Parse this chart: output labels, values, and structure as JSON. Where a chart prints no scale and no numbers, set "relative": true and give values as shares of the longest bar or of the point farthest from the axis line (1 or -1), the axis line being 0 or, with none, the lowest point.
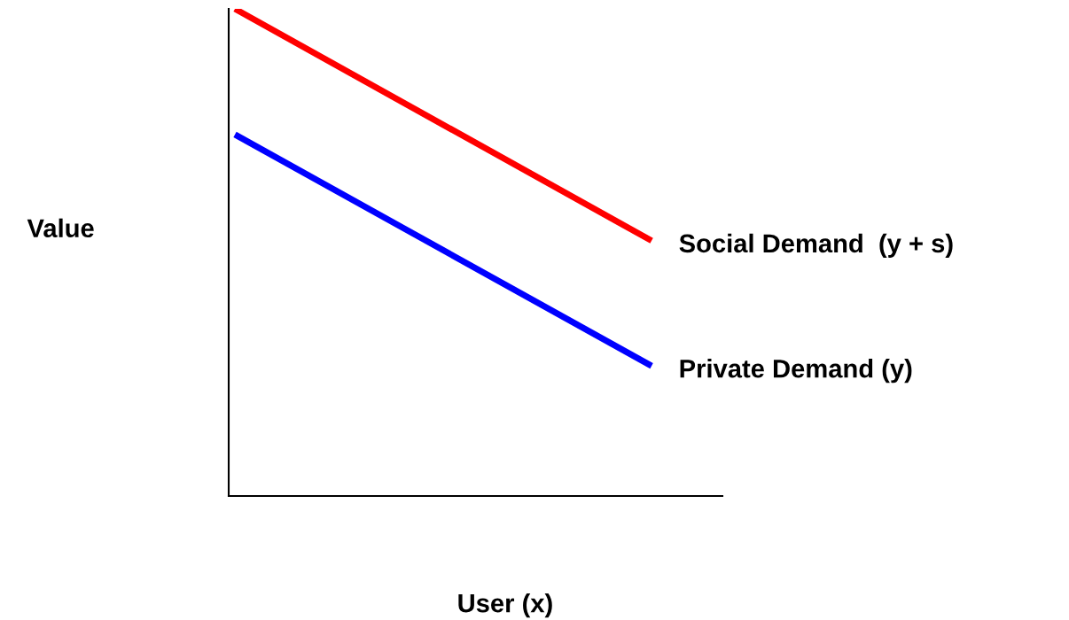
{
  "chart_data": {
    "type": "line",
    "relative": true,
    "xlabel": "User (x)",
    "ylabel": "Value",
    "categories": [
      null,
      null
    ],
    "series": [
      {
        "name": "Social Demand  (y + s)",
        "color": "#ff0000",
        "values": [
          1,
          0.524
        ]
      },
      {
        "name": "Private Demand (y)",
        "color": "#0000ff",
        "values": [
          0.742,
          0.267
        ]
      }
    ],
    "legend": false,
    "grid": false,
    "marker": "none",
    "line_style": "solid"
  }
}
